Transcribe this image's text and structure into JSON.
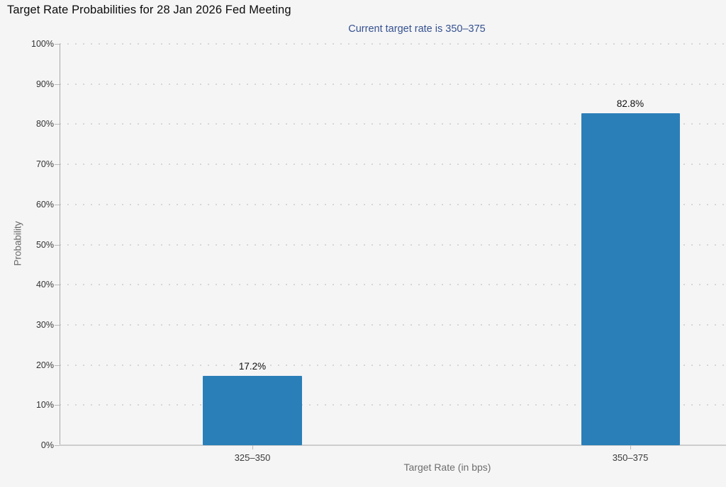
{
  "chart_data": {
    "type": "bar",
    "title": "Target Rate Probabilities for 28 Jan 2026 Fed Meeting",
    "subtitle": "Current target rate is 350–375",
    "categories": [
      "325–350",
      "350–375"
    ],
    "values": [
      17.2,
      82.8
    ],
    "value_labels": [
      "17.2%",
      "82.8%"
    ],
    "xlabel": "Target Rate (in bps)",
    "ylabel": "Probability",
    "ylim": [
      0,
      100
    ],
    "ytick_step": 10,
    "ytick_labels": [
      "0%",
      "10%",
      "20%",
      "30%",
      "40%",
      "50%",
      "60%",
      "70%",
      "80%",
      "90%",
      "100%"
    ],
    "grid": "horizontal-dotted",
    "legend": "none",
    "colors": {
      "bar": "#2b7fb8",
      "subtitle_text": "#35518e",
      "background": "#f5f5f6"
    }
  }
}
